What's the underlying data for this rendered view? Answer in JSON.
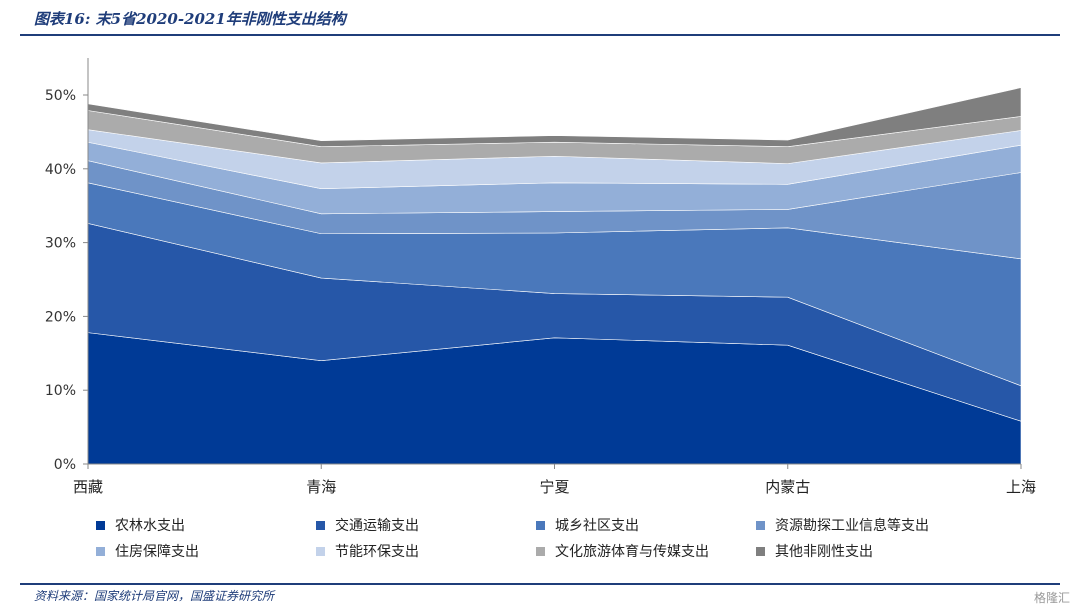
{
  "header": {
    "title": "图表16: 末5省2020-2021年非刚性支出结构"
  },
  "footer": {
    "source": "资料来源：国家统计局官网，国盛证券研究所",
    "watermark": "格隆汇"
  },
  "chart_data": {
    "type": "area",
    "stacked": true,
    "title": "",
    "xlabel": "",
    "ylabel": "",
    "ylim": [
      0,
      50
    ],
    "yticks": [
      "0%",
      "10%",
      "20%",
      "30%",
      "40%",
      "50%"
    ],
    "yticks_values": [
      0,
      10,
      20,
      30,
      40,
      50
    ],
    "categories": [
      "西藏",
      "青海",
      "宁夏",
      "内蒙古",
      "上海"
    ],
    "legend_position": "bottom",
    "series": [
      {
        "name": "农林水支出",
        "color": "#003a96",
        "values": [
          17.8,
          14.0,
          17.1,
          16.1,
          5.8
        ]
      },
      {
        "name": "交通运输支出",
        "color": "#2657a8",
        "values": [
          14.8,
          11.2,
          6.0,
          6.5,
          4.8
        ]
      },
      {
        "name": "城乡社区支出",
        "color": "#4a78bb",
        "values": [
          5.5,
          6.0,
          8.2,
          9.4,
          17.2
        ]
      },
      {
        "name": "资源勘探工业信息等支出",
        "color": "#6f93c8",
        "values": [
          3.0,
          2.7,
          2.9,
          2.5,
          11.7
        ]
      },
      {
        "name": "住房保障支出",
        "color": "#93afd8",
        "values": [
          2.5,
          3.4,
          3.9,
          3.4,
          3.7
        ]
      },
      {
        "name": "节能环保支出",
        "color": "#c3d2ea",
        "values": [
          1.7,
          3.5,
          3.6,
          2.8,
          2.0
        ]
      },
      {
        "name": "文化旅游体育与传媒支出",
        "color": "#ababab",
        "values": [
          2.6,
          2.2,
          1.9,
          2.3,
          1.9
        ]
      },
      {
        "name": "其他非刚性支出",
        "color": "#7f7f7f",
        "values": [
          0.9,
          0.8,
          0.9,
          0.9,
          3.9
        ]
      }
    ]
  }
}
